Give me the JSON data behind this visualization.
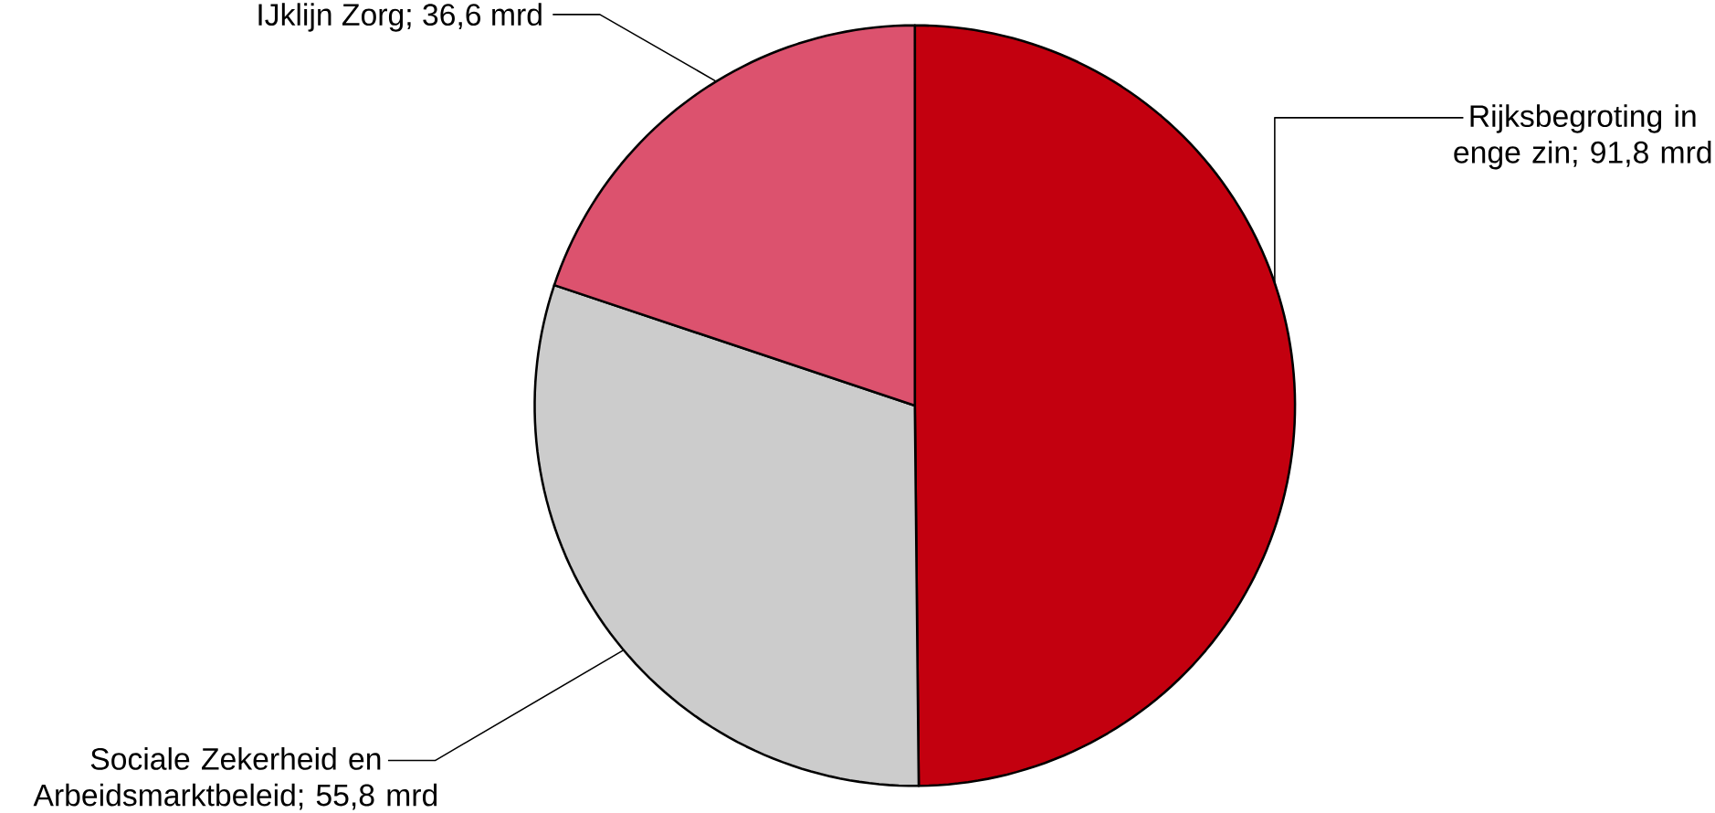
{
  "chart_data": {
    "type": "pie",
    "categories": [
      "Rijksbegroting in enge zin; 91,8 mrd",
      "Sociale Zekerheid en Arbeidsmarktbeleid; 55,8 mrd",
      "IJklijn Zorg; 36,6 mrd"
    ],
    "values": [
      91.8,
      55.8,
      36.6
    ],
    "colors": [
      "#c3000f",
      "#cccccc",
      "#dc526e"
    ]
  }
}
